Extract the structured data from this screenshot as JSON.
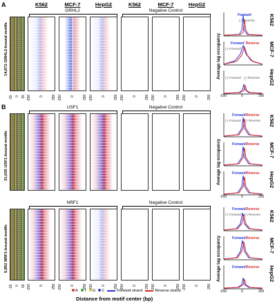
{
  "panels": {
    "a": {
      "letter": "A"
    },
    "b": {
      "letter": "B"
    },
    "c": {
      "letter": ""
    }
  },
  "column_headers": [
    "K562",
    "MCF-7",
    "HepG2",
    "K562",
    "MCF-7",
    "HepG2"
  ],
  "groups": {
    "grhl2": "GRHL2",
    "usf1": "USF1",
    "nrf1": "NRF1",
    "negative": "Negative Control"
  },
  "row_labels": {
    "grhl2": "14,872 GRHL2-bound motifs",
    "usf1": "31,035 USF1-bound motifs",
    "nrf1": "5,852 NRF1-bound motifs"
  },
  "cell_lines": [
    "K562",
    "MCF-7",
    "HepG2"
  ],
  "profile": {
    "ylabel": "Average tag occupancy",
    "forward": "Forward",
    "reverse": "Reverse",
    "fwd_paren": "(-) Forward",
    "rev_paren": "(-) Reverse",
    "xticks": [
      "-250",
      "0",
      "250"
    ]
  },
  "heat_xticks": [
    "-250",
    "0",
    "250"
  ],
  "seq_xticks": [
    "-15",
    "0",
    "15"
  ],
  "legend": {
    "bases": [
      {
        "label": "A",
        "color": "#d33"
      },
      {
        "label": "T",
        "color": "#3a3"
      },
      {
        "label": "G",
        "color": "#cc3"
      },
      {
        "label": "C",
        "color": "#33c"
      }
    ],
    "forward_strand": "Forward strand",
    "reverse_strand": "Reverse strand",
    "forward_color": "#2233dd",
    "reverse_color": "#dd2222"
  },
  "x_title": "Distance from motif center (bp)"
}
